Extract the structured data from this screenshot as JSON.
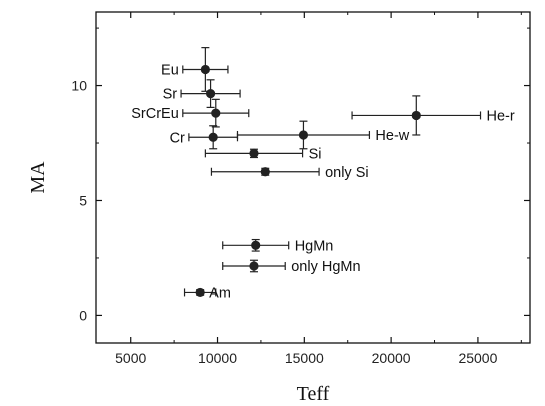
{
  "chart_data": {
    "type": "scatter",
    "title": "",
    "xlabel": "Teff",
    "ylabel": "MA",
    "xlim": [
      3000,
      28000
    ],
    "ylim": [
      -1.2,
      13.2
    ],
    "xticks": [
      5000,
      10000,
      15000,
      20000,
      25000
    ],
    "xtick_labels": [
      "5000",
      "10000",
      "15000",
      "20000",
      "25000"
    ],
    "yticks": [
      0,
      5,
      10
    ],
    "ytick_labels": [
      "0",
      "5",
      "10"
    ],
    "grid": false,
    "legend": "none",
    "marker_color": "#222222",
    "points": [
      {
        "label": "Eu",
        "x": 9300,
        "y": 10.7,
        "xerr": 1300,
        "yerr": 0.95,
        "label_side": "left"
      },
      {
        "label": "Sr",
        "x": 9600,
        "y": 9.65,
        "xerr": 1700,
        "yerr": 0.6,
        "label_side": "left"
      },
      {
        "label": "SrCrEu",
        "x": 9900,
        "y": 8.8,
        "xerr": 1900,
        "yerr": 0.6,
        "label_side": "left"
      },
      {
        "label": "Cr",
        "x": 9750,
        "y": 7.75,
        "xerr": 1400,
        "yerr": 0.5,
        "label_side": "left"
      },
      {
        "label": "He-w",
        "x": 14950,
        "y": 7.85,
        "xerr": 3800,
        "yerr": 0.6,
        "label_side": "right"
      },
      {
        "label": "He-r",
        "x": 21450,
        "y": 8.7,
        "xerr": 3700,
        "yerr": 0.85,
        "label_side": "right"
      },
      {
        "label": "Si",
        "x": 12100,
        "y": 7.05,
        "xerr": 2800,
        "yerr": 0.18,
        "label_side": "right"
      },
      {
        "label": "only Si",
        "x": 12750,
        "y": 6.25,
        "xerr": 3100,
        "yerr": 0.15,
        "label_side": "right"
      },
      {
        "label": "HgMn",
        "x": 12200,
        "y": 3.05,
        "xerr": 1900,
        "yerr": 0.25,
        "label_side": "right"
      },
      {
        "label": "only HgMn",
        "x": 12100,
        "y": 2.15,
        "xerr": 1800,
        "yerr": 0.25,
        "label_side": "right"
      },
      {
        "label": "Am",
        "x": 9000,
        "y": 1.0,
        "xerr": 900,
        "yerr": 0.12,
        "label_side": "right"
      }
    ]
  }
}
